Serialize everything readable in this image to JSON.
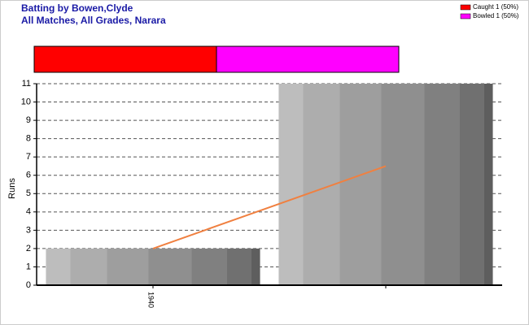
{
  "chart_data": [
    {
      "type": "stacked_bar",
      "series": [
        {
          "name": "Caught 1 (50%)",
          "color": "#ff0000",
          "values": [
            50
          ]
        },
        {
          "name": "Bowled 1 (50%)",
          "color": "#ff00ff",
          "values": [
            50
          ]
        }
      ]
    },
    {
      "type": "bar",
      "title": "Batting by Bowen,Clyde",
      "subtitle": "All Matches, All Grades, Narara",
      "y_label": "Runs",
      "categories": [
        "1940",
        null
      ],
      "values": [
        2,
        11
      ],
      "line": {
        "color": "#f08040",
        "values": [
          2,
          6.5
        ]
      },
      "ylim": [
        0,
        11
      ],
      "yticks": [
        0,
        1,
        2,
        3,
        4,
        5,
        6,
        7,
        8,
        9,
        10,
        11
      ],
      "grid": true
    }
  ]
}
